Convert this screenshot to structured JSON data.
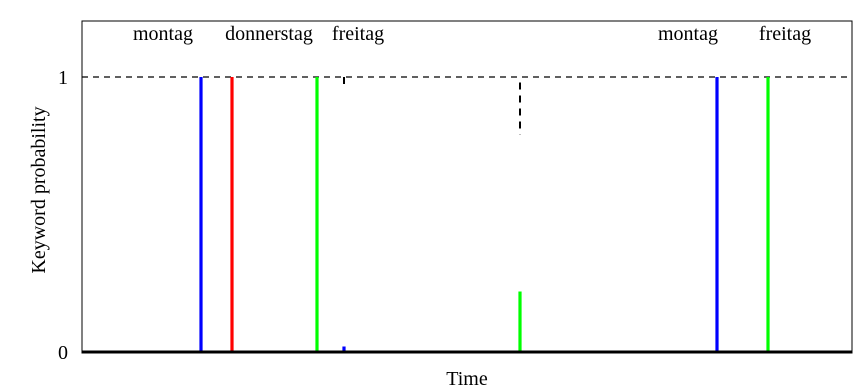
{
  "chart_data": {
    "type": "bar",
    "xlabel": "Time",
    "ylabel": "Keyword probability",
    "y_ticks": [
      0,
      1
    ],
    "ylim": [
      0,
      1.1
    ],
    "x_ticks": [],
    "reference_line": {
      "y": 1,
      "style": "dashed"
    },
    "top_annotations": [
      "montag",
      "donnerstag",
      "freitag",
      "montag",
      "freitag"
    ],
    "colors": {
      "montag": "#0000ff",
      "donnerstag": "#ff0000",
      "freitag": "#00ff00",
      "dashed_marker": "#000000"
    },
    "spikes": [
      {
        "keyword": "montag",
        "color": "#0000ff",
        "value": 1.0
      },
      {
        "keyword": "donnerstag",
        "color": "#ff0000",
        "value": 1.0
      },
      {
        "keyword": "freitag",
        "color": "#00ff00",
        "value": 1.0
      },
      {
        "keyword": "montag",
        "color": "#0000ff",
        "value": 0.02
      },
      {
        "keyword": "freitag",
        "color": "#00ff00",
        "value": 0.22
      },
      {
        "keyword": "montag",
        "color": "#0000ff",
        "value": 1.0
      },
      {
        "keyword": "freitag",
        "color": "#00ff00",
        "value": 1.0
      }
    ],
    "dashed_markers": [
      {
        "from": 0.97,
        "to": 1.0
      },
      {
        "from": 0.79,
        "to": 0.98
      }
    ]
  }
}
